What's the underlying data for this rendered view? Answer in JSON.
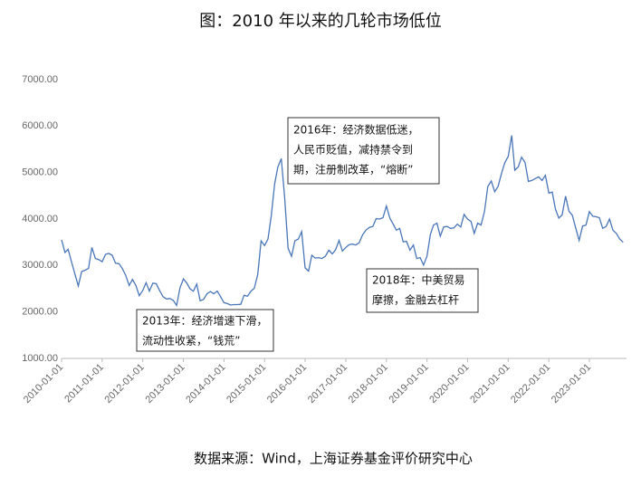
{
  "chart_data": {
    "type": "line",
    "title": "图：2010 年以来的几轮市场低位",
    "source": "数据来源：Wind，上海证券基金评价研究中心",
    "x": [
      "2010-01-01",
      "2010-02-01",
      "2010-03-01",
      "2010-04-01",
      "2010-05-01",
      "2010-06-01",
      "2010-07-01",
      "2010-08-01",
      "2010-09-01",
      "2010-10-01",
      "2010-11-01",
      "2010-12-01",
      "2011-01-01",
      "2011-02-01",
      "2011-03-01",
      "2011-04-01",
      "2011-05-01",
      "2011-06-01",
      "2011-07-01",
      "2011-08-01",
      "2011-09-01",
      "2011-10-01",
      "2011-11-01",
      "2011-12-01",
      "2012-01-01",
      "2012-02-01",
      "2012-03-01",
      "2012-04-01",
      "2012-05-01",
      "2012-06-01",
      "2012-07-01",
      "2012-08-01",
      "2012-09-01",
      "2012-10-01",
      "2012-11-01",
      "2012-12-01",
      "2013-01-01",
      "2013-02-01",
      "2013-03-01",
      "2013-04-01",
      "2013-05-01",
      "2013-06-01",
      "2013-07-01",
      "2013-08-01",
      "2013-09-01",
      "2013-10-01",
      "2013-11-01",
      "2013-12-01",
      "2014-01-01",
      "2014-02-01",
      "2014-03-01",
      "2014-04-01",
      "2014-05-01",
      "2014-06-01",
      "2014-07-01",
      "2014-08-01",
      "2014-09-01",
      "2014-10-01",
      "2014-11-01",
      "2014-12-01",
      "2015-01-01",
      "2015-02-01",
      "2015-03-01",
      "2015-04-01",
      "2015-05-01",
      "2015-06-01",
      "2015-07-01",
      "2015-08-01",
      "2015-09-01",
      "2015-10-01",
      "2015-11-01",
      "2015-12-01",
      "2016-01-01",
      "2016-02-01",
      "2016-03-01",
      "2016-04-01",
      "2016-05-01",
      "2016-06-01",
      "2016-07-01",
      "2016-08-01",
      "2016-09-01",
      "2016-10-01",
      "2016-11-01",
      "2016-12-01",
      "2017-01-01",
      "2017-02-01",
      "2017-03-01",
      "2017-04-01",
      "2017-05-01",
      "2017-06-01",
      "2017-07-01",
      "2017-08-01",
      "2017-09-01",
      "2017-10-01",
      "2017-11-01",
      "2017-12-01",
      "2018-01-01",
      "2018-02-01",
      "2018-03-01",
      "2018-04-01",
      "2018-05-01",
      "2018-06-01",
      "2018-07-01",
      "2018-08-01",
      "2018-09-01",
      "2018-10-01",
      "2018-11-01",
      "2018-12-01",
      "2019-01-01",
      "2019-02-01",
      "2019-03-01",
      "2019-04-01",
      "2019-05-01",
      "2019-06-01",
      "2019-07-01",
      "2019-08-01",
      "2019-09-01",
      "2019-10-01",
      "2019-11-01",
      "2019-12-01",
      "2020-01-01",
      "2020-02-01",
      "2020-03-01",
      "2020-04-01",
      "2020-05-01",
      "2020-06-01",
      "2020-07-01",
      "2020-08-01",
      "2020-09-01",
      "2020-10-01",
      "2020-11-01",
      "2020-12-01",
      "2021-01-01",
      "2021-02-01",
      "2021-03-01",
      "2021-04-01",
      "2021-05-01",
      "2021-06-01",
      "2021-07-01",
      "2021-08-01",
      "2021-09-01",
      "2021-10-01",
      "2021-11-01",
      "2021-12-01",
      "2022-01-01",
      "2022-02-01",
      "2022-03-01",
      "2022-04-01",
      "2022-05-01",
      "2022-06-01",
      "2022-07-01",
      "2022-08-01",
      "2022-09-01",
      "2022-10-01",
      "2022-11-01",
      "2022-12-01",
      "2023-01-01",
      "2023-02-01",
      "2023-03-01",
      "2023-04-01",
      "2023-05-01",
      "2023-06-01",
      "2023-07-01",
      "2023-08-01",
      "2023-09-01",
      "2023-10-01",
      "2023-11-01"
    ],
    "series": [
      {
        "color": "#4a76b8",
        "values": [
          3550,
          3280,
          3350,
          3070,
          2820,
          2560,
          2870,
          2900,
          2940,
          3390,
          3150,
          3130,
          3080,
          3240,
          3260,
          3220,
          3050,
          3040,
          2940,
          2790,
          2570,
          2700,
          2570,
          2350,
          2460,
          2630,
          2450,
          2620,
          2610,
          2460,
          2330,
          2280,
          2290,
          2250,
          2140,
          2520,
          2710,
          2620,
          2500,
          2450,
          2600,
          2240,
          2270,
          2390,
          2440,
          2390,
          2450,
          2330,
          2200,
          2180,
          2150,
          2160,
          2160,
          2165,
          2360,
          2340,
          2450,
          2510,
          2810,
          3530,
          3430,
          3570,
          4050,
          4750,
          5120,
          5300,
          4470,
          3370,
          3200,
          3530,
          3570,
          3730,
          2950,
          2880,
          3220,
          3160,
          3170,
          3150,
          3200,
          3330,
          3250,
          3340,
          3540,
          3310,
          3390,
          3450,
          3460,
          3440,
          3490,
          3660,
          3760,
          3820,
          3840,
          4010,
          4000,
          4030,
          4280,
          4020,
          3900,
          3760,
          3800,
          3510,
          3520,
          3330,
          3440,
          3150,
          3170,
          3010,
          3200,
          3670,
          3870,
          3910,
          3630,
          3830,
          3840,
          3800,
          3810,
          3890,
          3830,
          4100,
          4000,
          3950,
          3690,
          3910,
          3870,
          4160,
          4700,
          4820,
          4590,
          4700,
          4980,
          5210,
          5350,
          5800,
          5050,
          5120,
          5330,
          5220,
          4810,
          4830,
          4870,
          4910,
          4830,
          4940,
          4560,
          4580,
          4220,
          4020,
          4090,
          4490,
          4170,
          4080,
          3800,
          3540,
          3850,
          3870,
          4160,
          4060,
          4050,
          4030,
          3800,
          3840,
          4000,
          3760,
          3690,
          3570,
          3500
        ]
      }
    ],
    "xlim": [
      "2010-01-01",
      "2023-12-01"
    ],
    "xticks": [
      "2010-01-01",
      "2011-01-01",
      "2012-01-01",
      "2013-01-01",
      "2014-01-01",
      "2015-01-01",
      "2016-01-01",
      "2017-01-01",
      "2018-01-01",
      "2019-01-01",
      "2020-01-01",
      "2021-01-01",
      "2022-01-01",
      "2023-01-01"
    ],
    "ylim": [
      1000,
      7000
    ],
    "yticks": [
      {
        "value": 1000,
        "label": "1000.00"
      },
      {
        "value": 2000,
        "label": "2000.00"
      },
      {
        "value": 3000,
        "label": "3000.00"
      },
      {
        "value": 4000,
        "label": "4000.00"
      },
      {
        "value": 5000,
        "label": "5000.00"
      },
      {
        "value": 6000,
        "label": "6000.00"
      },
      {
        "value": 7000,
        "label": "7000.00"
      }
    ],
    "annotations": [
      {
        "lines": [
          "2016年：经济数据低迷，",
          "人民币贬值，减持禁令到",
          "期，注册制改革，“熔断”"
        ]
      },
      {
        "lines": [
          "2018年：中美贸易",
          "摩擦，金融去杠杆"
        ]
      },
      {
        "lines": [
          "2013年：经济增速下滑，",
          "流动性收紧，“钱荒”"
        ]
      }
    ]
  }
}
